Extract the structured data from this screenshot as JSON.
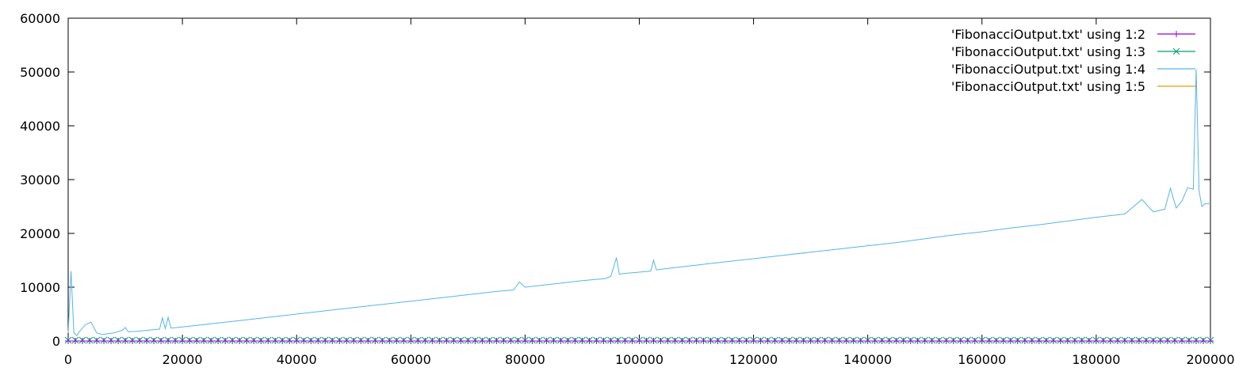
{
  "chart_data": {
    "type": "line",
    "title": "",
    "xlabel": "",
    "ylabel": "",
    "xlim": [
      0,
      200000
    ],
    "ylim": [
      0,
      60000
    ],
    "x_ticks": [
      0,
      20000,
      40000,
      60000,
      80000,
      100000,
      120000,
      140000,
      160000,
      180000,
      200000
    ],
    "y_ticks": [
      0,
      10000,
      20000,
      30000,
      40000,
      50000,
      60000
    ],
    "x_tick_labels": [
      "0",
      "20000",
      "40000",
      "60000",
      "80000",
      "100000",
      "120000",
      "140000",
      "160000",
      "180000",
      "200000"
    ],
    "y_tick_labels": [
      "0",
      "10000",
      "20000",
      "30000",
      "40000",
      "50000",
      "60000"
    ],
    "grid": false,
    "legend_position": "top-right",
    "series": [
      {
        "name": "'FibonacciOutput.txt' using 1:2",
        "color": "#9400d3",
        "marker": "plus",
        "x": [
          0,
          20000,
          40000,
          60000,
          80000,
          100000,
          120000,
          140000,
          160000,
          180000,
          200000
        ],
        "y": [
          0,
          0,
          0,
          0,
          0,
          0,
          0,
          0,
          0,
          0,
          0
        ]
      },
      {
        "name": "'FibonacciOutput.txt' using 1:3",
        "color": "#009e73",
        "marker": "cross",
        "x": [
          0,
          20000,
          40000,
          60000,
          80000,
          100000,
          120000,
          140000,
          160000,
          180000,
          200000
        ],
        "y": [
          0,
          0,
          0,
          0,
          0,
          0,
          0,
          0,
          0,
          0,
          0
        ]
      },
      {
        "name": "'FibonacciOutput.txt' using 1:4",
        "color": "#56b4e9",
        "marker": "none",
        "x": [
          0,
          500,
          1000,
          1500,
          2000,
          3000,
          4000,
          5000,
          6000,
          8000,
          9500,
          10000,
          10500,
          12000,
          14000,
          16000,
          16500,
          17000,
          17500,
          18000,
          20000,
          25000,
          30000,
          35000,
          40000,
          45000,
          50000,
          55000,
          60000,
          65000,
          70000,
          75000,
          78000,
          79000,
          80000,
          85000,
          90000,
          94000,
          95000,
          96000,
          96500,
          97000,
          98000,
          100000,
          102000,
          102500,
          103000,
          105000,
          110000,
          115000,
          120000,
          125000,
          130000,
          135000,
          140000,
          145000,
          150000,
          155000,
          160000,
          165000,
          170000,
          175000,
          180000,
          185000,
          188000,
          190000,
          192000,
          193000,
          194000,
          195000,
          196000,
          197000,
          197500,
          198000,
          198500,
          199000,
          200000
        ],
        "y": [
          1500,
          13000,
          1500,
          1000,
          1800,
          3000,
          3500,
          1500,
          1200,
          1500,
          2000,
          2500,
          1700,
          1800,
          2000,
          2200,
          4300,
          2300,
          4400,
          2400,
          2600,
          3200,
          3800,
          4400,
          5000,
          5600,
          6200,
          6800,
          7400,
          8000,
          8600,
          9200,
          9500,
          11000,
          10000,
          10600,
          11200,
          11600,
          12000,
          15500,
          12400,
          12500,
          12600,
          12800,
          13000,
          15000,
          13200,
          13500,
          14100,
          14700,
          15300,
          15900,
          16500,
          17100,
          17700,
          18300,
          19000,
          19700,
          20300,
          21000,
          21600,
          22300,
          23000,
          23600,
          26300,
          24000,
          24500,
          28400,
          24700,
          26000,
          28500,
          28200,
          50500,
          28000,
          25000,
          25500,
          25500
        ]
      },
      {
        "name": "'FibonacciOutput.txt' using 1:5",
        "color": "#e69f00",
        "marker": "none",
        "x": [
          0,
          200000
        ],
        "y": [
          0,
          0
        ]
      }
    ]
  }
}
